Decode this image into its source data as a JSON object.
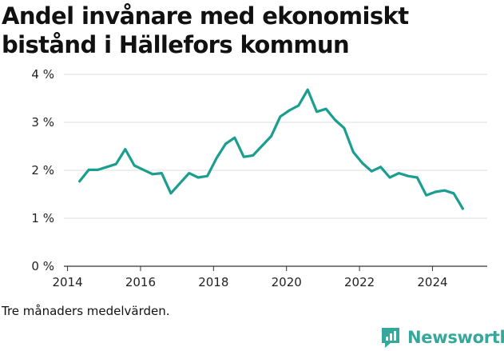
{
  "page_title": "Andel invånare med ekonomiskt bistånd i Hällefors kommun",
  "footnote": "Tre månaders medelvärden.",
  "brand": {
    "name": "Newsworthy",
    "icon": "newsworthy-logo-icon",
    "color": "#35a89b"
  },
  "chart_data": {
    "type": "line",
    "title": "Andel invånare med ekonomiskt bistånd i Hällefors kommun",
    "xlabel": "",
    "ylabel": "",
    "xlim": [
      2013.9,
      2025.5
    ],
    "ylim": [
      0,
      4
    ],
    "x_ticks": [
      2014,
      2016,
      2018,
      2020,
      2022,
      2024
    ],
    "x_tick_labels": [
      "2014",
      "2016",
      "2018",
      "2020",
      "2022",
      "2024"
    ],
    "y_ticks": [
      0,
      1,
      2,
      3,
      4
    ],
    "y_tick_labels": [
      "0 %",
      "1 %",
      "2 %",
      "3 %",
      "4 %"
    ],
    "grid": "horizontal",
    "line_color": "#1a9e8f",
    "series": [
      {
        "x": [
          2014.33,
          2014.58,
          2014.83,
          2015.08,
          2015.33,
          2015.58,
          2015.83,
          2016.08,
          2016.33,
          2016.58,
          2016.83,
          2017.08,
          2017.33,
          2017.58,
          2017.83,
          2018.08,
          2018.33,
          2018.58,
          2018.83,
          2019.08,
          2019.33,
          2019.58,
          2019.83,
          2020.08,
          2020.33,
          2020.58,
          2020.83,
          2021.08,
          2021.33,
          2021.58,
          2021.83,
          2022.08,
          2022.33,
          2022.58,
          2022.83,
          2023.08,
          2023.33,
          2023.58,
          2023.83,
          2024.08,
          2024.33,
          2024.58,
          2024.83
        ],
        "y": [
          1.77,
          2.01,
          2.01,
          2.07,
          2.13,
          2.44,
          2.1,
          2.01,
          1.92,
          1.94,
          1.52,
          1.73,
          1.94,
          1.85,
          1.88,
          2.25,
          2.55,
          2.68,
          2.28,
          2.31,
          2.51,
          2.71,
          3.12,
          3.25,
          3.35,
          3.68,
          3.22,
          3.28,
          3.05,
          2.88,
          2.38,
          2.15,
          1.98,
          2.07,
          1.85,
          1.94,
          1.88,
          1.85,
          1.48,
          1.55,
          1.58,
          1.52,
          1.2
        ]
      }
    ]
  }
}
